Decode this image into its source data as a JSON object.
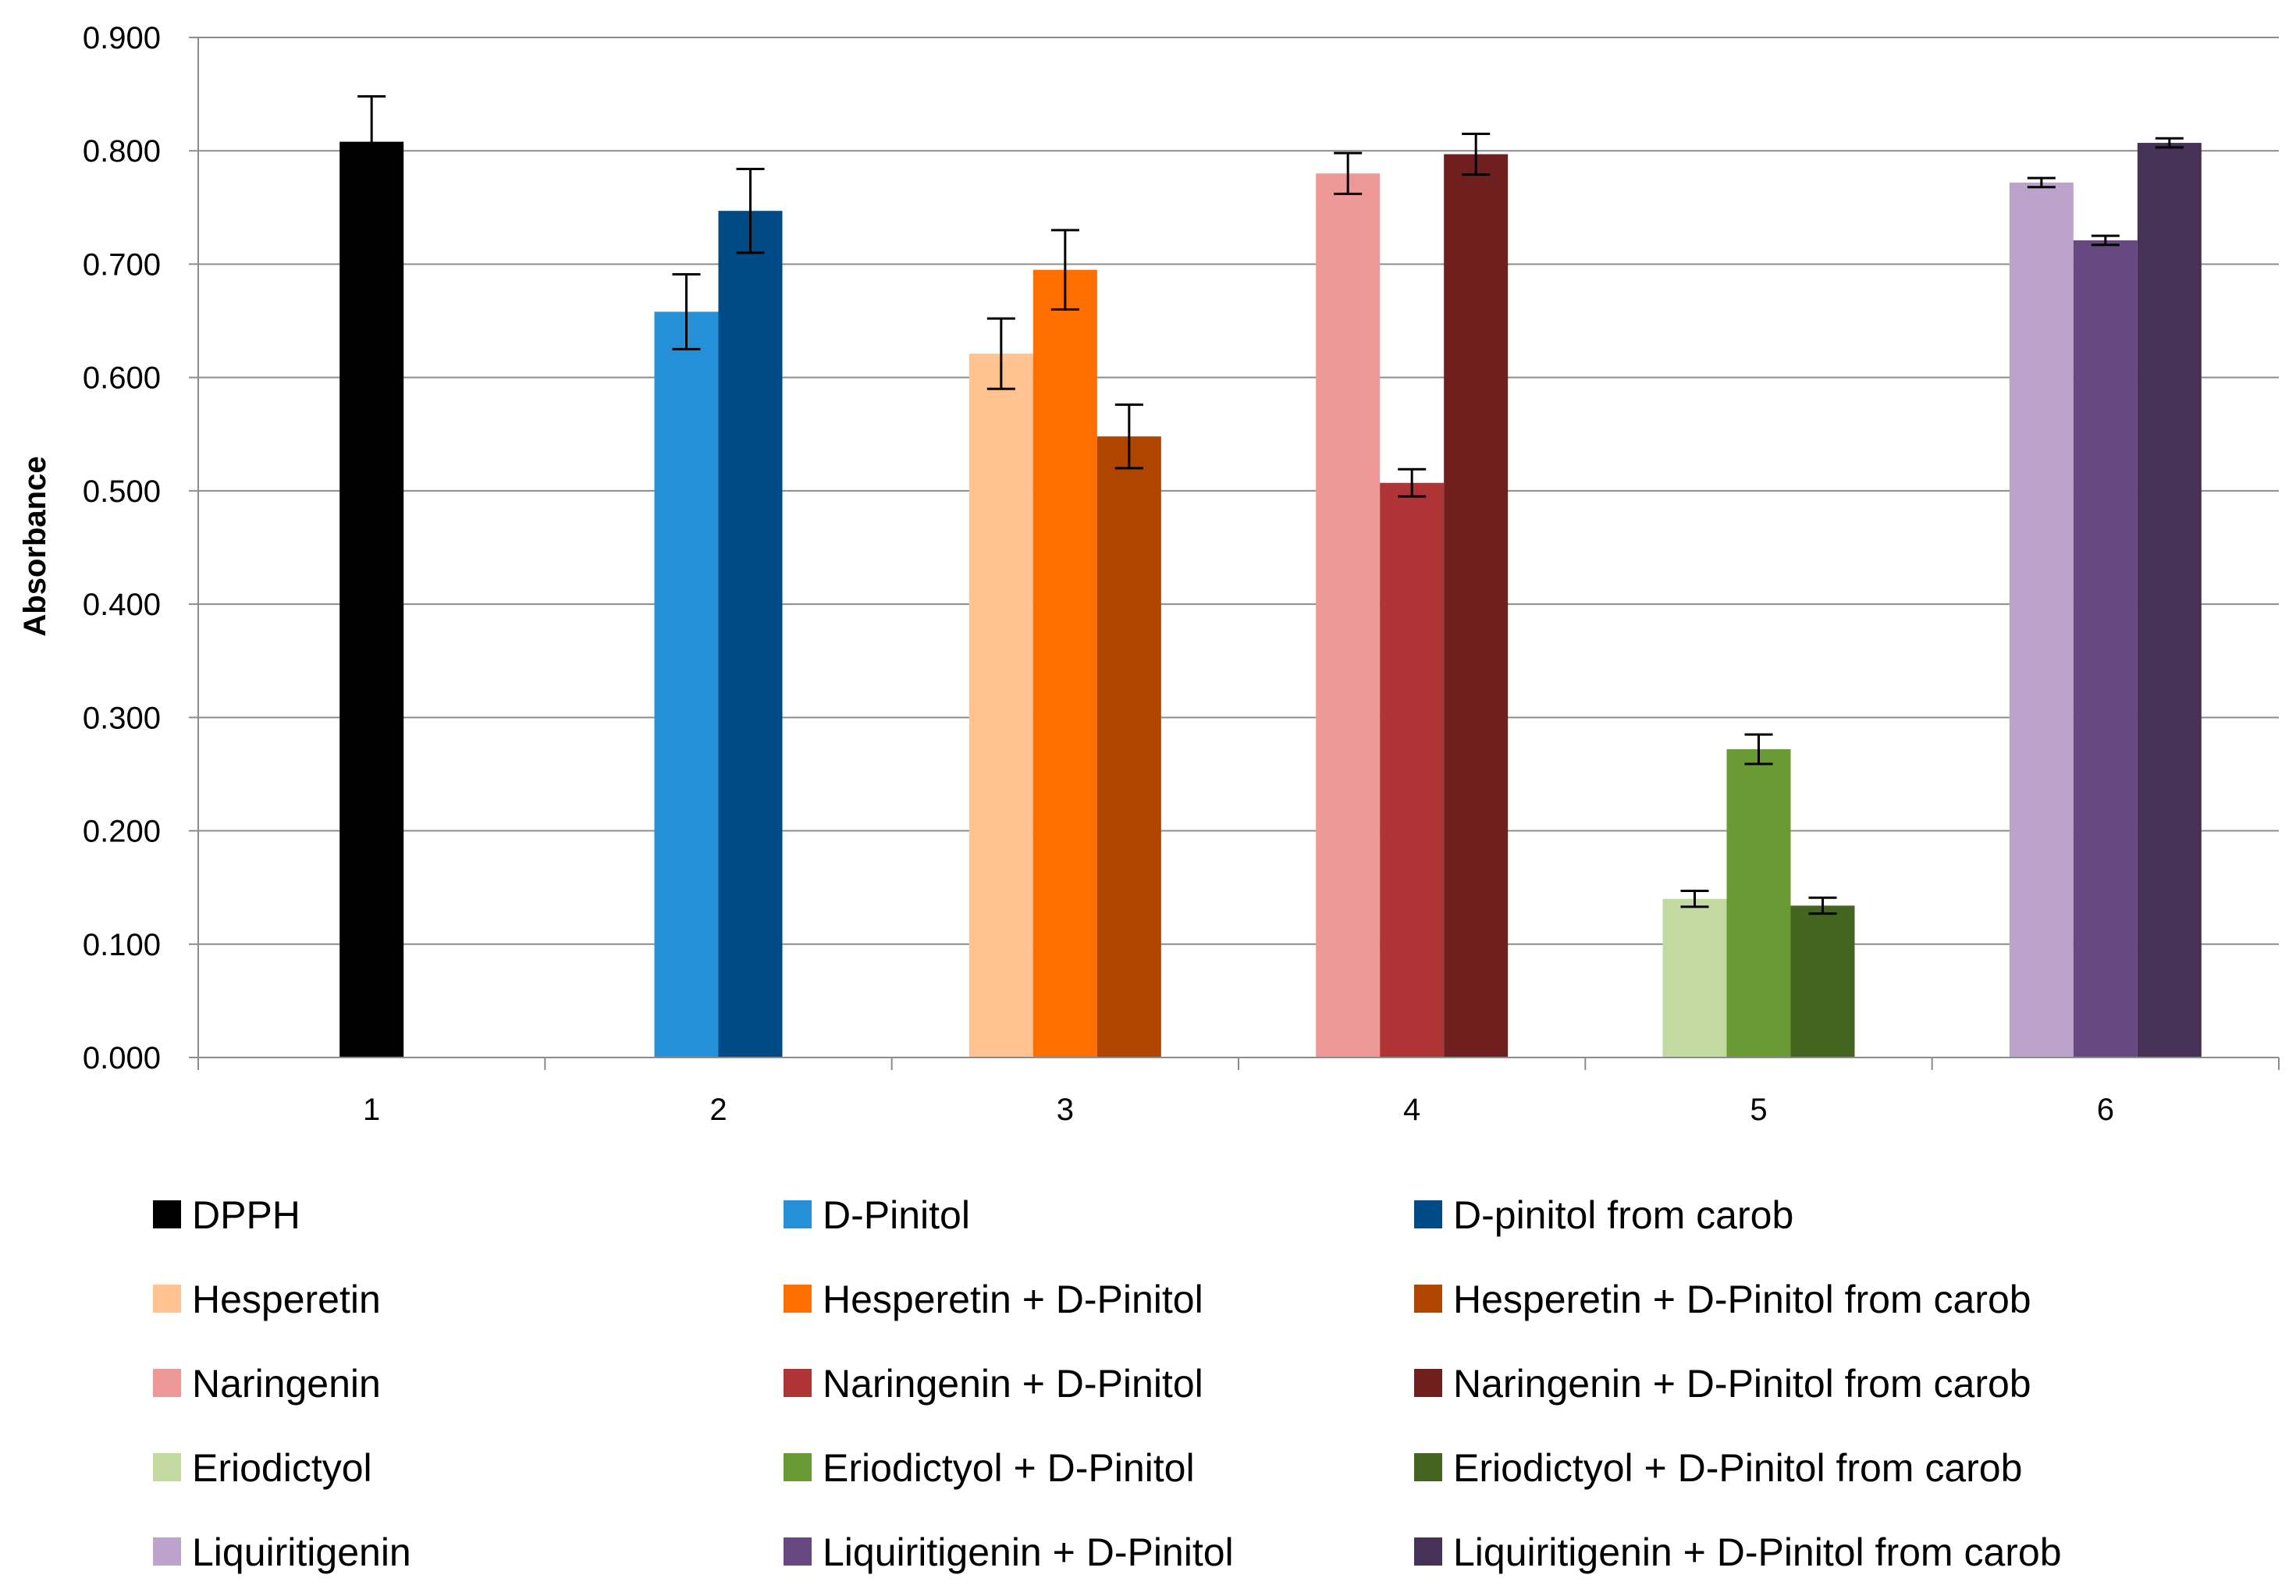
{
  "chart_data": {
    "type": "bar",
    "title": "",
    "xlabel": "",
    "ylabel": "Absorbance",
    "ylim": [
      0,
      0.9
    ],
    "ytick_step": 0.1,
    "ytick_labels": [
      "0.000",
      "0.100",
      "0.200",
      "0.300",
      "0.400",
      "0.500",
      "0.600",
      "0.700",
      "0.800",
      "0.900"
    ],
    "grid": true,
    "legend_position": "bottom",
    "categories": [
      "1",
      "2",
      "3",
      "4",
      "5",
      "6"
    ],
    "groups": [
      {
        "category": "1",
        "bars": [
          {
            "name": "DPPH",
            "value": 0.808,
            "error": 0.04,
            "color": "#000000"
          }
        ]
      },
      {
        "category": "2",
        "bars": [
          {
            "name": "D-Pinitol",
            "value": 0.658,
            "error": 0.033,
            "color": "#2490D8"
          },
          {
            "name": "D-pinitol from carob",
            "value": 0.747,
            "error": 0.037,
            "color": "#004A85"
          }
        ]
      },
      {
        "category": "3",
        "bars": [
          {
            "name": "Hesperetin",
            "value": 0.621,
            "error": 0.031,
            "color": "#FFC290"
          },
          {
            "name": "Hesperetin + D-Pinitol",
            "value": 0.695,
            "error": 0.035,
            "color": "#FF6E00"
          },
          {
            "name": "Hesperetin + D-Pinitol from carob",
            "value": 0.548,
            "error": 0.028,
            "color": "#B04500"
          }
        ]
      },
      {
        "category": "4",
        "bars": [
          {
            "name": "Naringenin",
            "value": 0.78,
            "error": 0.018,
            "color": "#EE9897"
          },
          {
            "name": "Naringenin + D-Pinitol",
            "value": 0.507,
            "error": 0.012,
            "color": "#AE3436"
          },
          {
            "name": "Naringenin + D-Pinitol from carob",
            "value": 0.797,
            "error": 0.018,
            "color": "#701F1F"
          }
        ]
      },
      {
        "category": "5",
        "bars": [
          {
            "name": "Eriodictyol",
            "value": 0.14,
            "error": 0.007,
            "color": "#C2D9A0"
          },
          {
            "name": "Eriodictyol + D-Pinitol",
            "value": 0.272,
            "error": 0.013,
            "color": "#6A9A33"
          },
          {
            "name": "Eriodictyol + D-Pinitol from carob",
            "value": 0.134,
            "error": 0.007,
            "color": "#436520"
          }
        ]
      },
      {
        "category": "6",
        "bars": [
          {
            "name": "Liquiritigenin",
            "value": 0.772,
            "error": 0.004,
            "color": "#BCA3CC"
          },
          {
            "name": "Liquiritigenin + D-Pinitol",
            "value": 0.721,
            "error": 0.004,
            "color": "#674881"
          },
          {
            "name": "Liquiritigenin + D-Pinitol from carob",
            "value": 0.807,
            "error": 0.004,
            "color": "#463256"
          }
        ]
      }
    ],
    "legend": [
      {
        "label": "DPPH",
        "color": "#000000"
      },
      {
        "label": "D-Pinitol",
        "color": "#2490D8"
      },
      {
        "label": "D-pinitol from carob",
        "color": "#004A85"
      },
      {
        "label": "Hesperetin",
        "color": "#FFC290"
      },
      {
        "label": "Hesperetin + D-Pinitol",
        "color": "#FF6E00"
      },
      {
        "label": "Hesperetin + D-Pinitol from carob",
        "color": "#B04500"
      },
      {
        "label": "Naringenin",
        "color": "#EE9897"
      },
      {
        "label": "Naringenin + D-Pinitol",
        "color": "#AE3436"
      },
      {
        "label": "Naringenin + D-Pinitol from carob",
        "color": "#701F1F"
      },
      {
        "label": "Eriodictyol",
        "color": "#C2D9A0"
      },
      {
        "label": "Eriodictyol + D-Pinitol",
        "color": "#6A9A33"
      },
      {
        "label": "Eriodictyol + D-Pinitol from carob",
        "color": "#436520"
      },
      {
        "label": "Liquiritigenin",
        "color": "#BCA3CC"
      },
      {
        "label": "Liquiritigenin + D-Pinitol",
        "color": "#674881"
      },
      {
        "label": "Liquiritigenin + D-Pinitol from carob",
        "color": "#463256"
      }
    ]
  }
}
